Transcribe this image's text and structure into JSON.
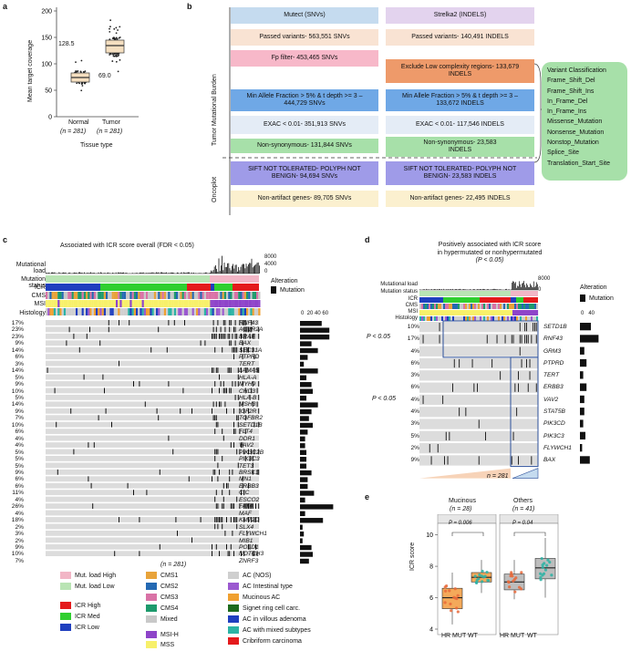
{
  "panels": {
    "a": "a",
    "b": "b",
    "c": "c",
    "d": "d",
    "e": "e"
  },
  "panel_a": {
    "ylabel": "Mean target coverage",
    "yticks": [
      "200",
      "150",
      "100",
      "50",
      "0"
    ],
    "groups": [
      "Normal",
      "Tumor"
    ],
    "n_labels": [
      "(n = 281)",
      "(n = 281)"
    ],
    "medians": [
      "69.0",
      "128.5"
    ],
    "xlabel": "Tissue type"
  },
  "panel_b": {
    "side_label_top": "Tumor Mutational Burden",
    "side_label_bottom": "Oncoplot",
    "snv_header": "Mutect (SNVs)",
    "indel_header": "Strelka2 (INDELS)",
    "snv_steps": [
      "Passed variants- 563,551 SNVs",
      "Fp filter- 453,465 SNVs",
      "Min Allele Fraction > 5% & t depth >= 3 – 444,729 SNVs",
      "EXAC < 0.01- 351,913 SNVs",
      "Non-synonymous- 131,844 SNVs",
      "SIFT NOT TOLERATED- POLYPH NOT BENIGN- 94,694 SNVs",
      "Non-artifact genes- 89,705 SNVs"
    ],
    "indel_steps": [
      "Passed variants- 140,491 INDELS",
      "Exclude Low complexity regions- 133,679 INDELS",
      "Min Allele Fraction > 5% & t depth >= 3 – 133,672 INDELS",
      "EXAC < 0.01- 117,546 INDELS",
      "Non-synonymous- 23,583 INDELS",
      "SIFT NOT TOLERATED- POLYPH NOT BENIGN- 23,583 INDELS",
      "Non-artifact genes- 22,495 INDELS"
    ],
    "classification": [
      "Variant Classification",
      "Frame_Shift_Del",
      "Frame_Shift_Ins",
      "In_Frame_Del",
      "In_Frame_Ins",
      "Missense_Mutation",
      "Nonsense_Mutation",
      "Nonstop_Mutation",
      "Splice_Site",
      "Translation_Start_Site"
    ]
  },
  "panel_c": {
    "title": "Associated with ICR score overall (FDR < 0.05)",
    "track_labels": [
      "Mutational load",
      "Mutation status",
      "ICR",
      "CMS",
      "MSI",
      "Histology"
    ],
    "load_ticks": [
      "8000",
      "4000",
      "0"
    ],
    "bar_ticks": "0  20 40 60",
    "alteration_title": "Alteration",
    "alteration_item": "Mutation",
    "n_label": "(n = 281)",
    "genes": [
      "RNF43",
      "ACVR2A",
      "BRAF",
      "BAX",
      "SEC31A",
      "PTPRD",
      "TERT",
      "LAMA5",
      "HLA-A",
      "MYH9",
      "CHD3",
      "HLA-B",
      "MSH3",
      "IGF2R",
      "TGFBR2",
      "SETD1B",
      "FLT4",
      "DDR1",
      "VAV2",
      "PIK3C2B",
      "PIK3C3",
      "TET3",
      "BRSK1",
      "MN1",
      "ERBB3",
      "CIC",
      "ESCO2",
      "FAT4",
      "MAF",
      "KMT2D",
      "SLX4",
      "FLYWCH1",
      "MIB1",
      "POLD1",
      "NOTCH3",
      "ZNRF3"
    ],
    "percents": [
      "17%",
      "23%",
      "23%",
      "9%",
      "14%",
      "6%",
      "3%",
      "14%",
      "5%",
      "9%",
      "10%",
      "5%",
      "14%",
      "9%",
      "7%",
      "10%",
      "6%",
      "4%",
      "4%",
      "5%",
      "5%",
      "5%",
      "9%",
      "6%",
      "6%",
      "11%",
      "4%",
      "26%",
      "4%",
      "18%",
      "2%",
      "3%",
      "2%",
      "9%",
      "10%",
      "7%"
    ],
    "bar_values": [
      17,
      23,
      23,
      9,
      14,
      6,
      3,
      14,
      5,
      9,
      10,
      5,
      14,
      9,
      7,
      10,
      6,
      4,
      4,
      5,
      5,
      5,
      9,
      6,
      6,
      11,
      4,
      26,
      4,
      18,
      2,
      3,
      2,
      9,
      10,
      7
    ]
  },
  "panel_d": {
    "title_line1": "Positively associated with ICR score",
    "title_line2": "in hypermutated or nonhypermutated",
    "title_line3": "(P < 0.05)",
    "track_labels": [
      "Mutational load",
      "Mutation status",
      "ICR",
      "CMS",
      "MSI",
      "Histology"
    ],
    "load_ticks": [
      "8000",
      "0"
    ],
    "bar_ticks": "0   40",
    "alteration_title": "Alteration",
    "alteration_item": "Mutation",
    "pval_labels": [
      "P < 0.05",
      "P < 0.05"
    ],
    "n_label": "n = 281",
    "genes": [
      "SETD1B",
      "RNF43",
      "GRM3",
      "PTPRD",
      "TERT",
      "ERBB3",
      "VAV2",
      "STAT5B",
      "PIK3CD",
      "PIK3C3",
      "FLYWCH1",
      "BAX"
    ],
    "percents": [
      "10%",
      "17%",
      "4%",
      "6%",
      "3%",
      "6%",
      "4%",
      "4%",
      "3%",
      "5%",
      "2%",
      "9%"
    ],
    "bar_values": [
      10,
      17,
      4,
      6,
      3,
      6,
      4,
      4,
      3,
      5,
      2,
      9
    ]
  },
  "panel_e": {
    "groups": [
      "Mucinous",
      "Others"
    ],
    "group_n": [
      "(n = 28)",
      "(n = 41)"
    ],
    "pvalues": [
      "P = 0.006",
      "P = 0.04"
    ],
    "xticks": [
      "HR MUT",
      "WT",
      "HR MUT",
      "WT"
    ],
    "yticks": [
      "10",
      "8",
      "6",
      "4"
    ],
    "ylabel": "ICR score",
    "chart_data": {
      "type": "box",
      "title": "",
      "ylabel": "ICR score",
      "ylim": [
        4,
        10.5
      ],
      "series": [
        {
          "name": "Mucinous HR MUT",
          "median": 6.0,
          "q1": 5.3,
          "q3": 6.6,
          "min": 4.3,
          "max": 7.6
        },
        {
          "name": "Mucinous WT",
          "median": 7.3,
          "q1": 7.0,
          "q3": 7.6,
          "min": 6.3,
          "max": 8.4
        },
        {
          "name": "Others HR MUT",
          "median": 7.0,
          "q1": 6.5,
          "q3": 7.5,
          "min": 5.9,
          "max": 8.4
        },
        {
          "name": "Others WT",
          "median": 7.9,
          "q1": 7.2,
          "q3": 8.5,
          "min": 6.0,
          "max": 9.8
        }
      ]
    }
  },
  "legend": {
    "mutload": [
      {
        "label": "Mut. load High",
        "color": "#f2b6c6"
      },
      {
        "label": "Mut. load Low",
        "color": "#b9e4b4"
      }
    ],
    "icr": [
      {
        "label": "ICR High",
        "color": "#e41a1c"
      },
      {
        "label": "ICR Med",
        "color": "#2fcf2f"
      },
      {
        "label": "ICR Low",
        "color": "#1f3fbf"
      }
    ],
    "cms": [
      {
        "label": "CMS1",
        "color": "#e8a33a"
      },
      {
        "label": "CMS2",
        "color": "#2469b3"
      },
      {
        "label": "CMS3",
        "color": "#d972a6"
      },
      {
        "label": "CMS4",
        "color": "#1d9a6c"
      },
      {
        "label": "Mixed",
        "color": "#c8c8c8"
      }
    ],
    "msi": [
      {
        "label": "MSI-H",
        "color": "#8e44c9"
      },
      {
        "label": "MSS",
        "color": "#f7f06a"
      }
    ],
    "histology": [
      {
        "label": "AC (NOS)",
        "color": "#cfcfcf"
      },
      {
        "label": "AC Intestinal type",
        "color": "#9b59d0"
      },
      {
        "label": "Mucinous AC",
        "color": "#f0a030"
      },
      {
        "label": "Signet ring cell carc.",
        "color": "#1d6b1d"
      },
      {
        "label": "AC in villous adenoma",
        "color": "#1f3fbf"
      },
      {
        "label": "AC with mixed subtypes",
        "color": "#2bb3a5"
      },
      {
        "label": "Cribriform carcinoma",
        "color": "#e41a1c"
      }
    ]
  }
}
